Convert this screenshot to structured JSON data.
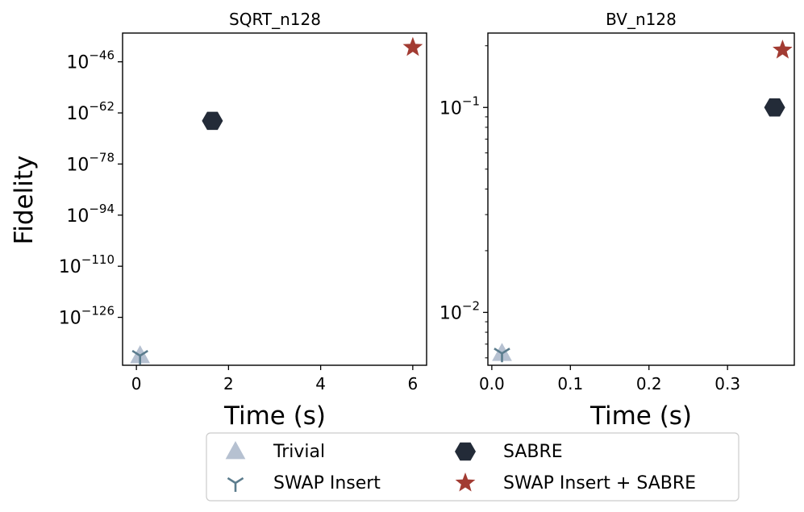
{
  "figure": {
    "ylabel": "Fidelity",
    "legend": {
      "placement": "bottom-center",
      "entries": [
        {
          "name": "Trivial",
          "marker": "triangle-up",
          "color": "#b6c1d1"
        },
        {
          "name": "SWAP Insert",
          "marker": "tri-down",
          "color": "#5b7c8d"
        },
        {
          "name": "SABRE",
          "marker": "hexagon",
          "color": "#232b38"
        },
        {
          "name": "SWAP Insert + SABRE",
          "marker": "star",
          "color": "#a23b32"
        }
      ]
    }
  },
  "chart_data": [
    {
      "type": "scatter",
      "title": "SQRT_n128",
      "xlabel": "Time (s)",
      "ylabel": "Fidelity",
      "xlim": [
        -0.3,
        6.3
      ],
      "ylim_log10": [
        -141,
        -37
      ],
      "yscale": "log",
      "grid": false,
      "xticks": [
        0,
        2,
        4,
        6
      ],
      "xtick_labels": [
        "0",
        "2",
        "4",
        "6"
      ],
      "yticks_log10": [
        -46,
        -62,
        -78,
        -94,
        -110,
        -126
      ],
      "ytick_exponents": [
        "−46",
        "−62",
        "−78",
        "−94",
        "−110",
        "−126"
      ],
      "series": [
        {
          "name": "Trivial",
          "x": [
            0.08
          ],
          "y_log10": [
            -138
          ]
        },
        {
          "name": "SWAP Insert",
          "x": [
            0.08
          ],
          "y_log10": [
            -138
          ]
        },
        {
          "name": "SABRE",
          "x": [
            1.65
          ],
          "y_log10": [
            -64.5
          ]
        },
        {
          "name": "SWAP Insert + SABRE",
          "x": [
            6.0
          ],
          "y_log10": [
            -41.5
          ]
        }
      ]
    },
    {
      "type": "scatter",
      "title": "BV_n128",
      "xlabel": "Time (s)",
      "ylabel": "",
      "xlim": [
        -0.005,
        0.385
      ],
      "ylim_log10": [
        -2.258,
        -0.637
      ],
      "yscale": "log",
      "grid": false,
      "xticks": [
        0.0,
        0.1,
        0.2,
        0.3
      ],
      "xtick_labels": [
        "0.0",
        "0.1",
        "0.2",
        "0.3"
      ],
      "yticks_log10": [
        -1,
        -2
      ],
      "ytick_exponents": [
        "−1",
        "−2"
      ],
      "series": [
        {
          "name": "Trivial",
          "x": [
            0.013
          ],
          "y_log10": [
            -2.2
          ]
        },
        {
          "name": "SWAP Insert",
          "x": [
            0.013
          ],
          "y_log10": [
            -2.2
          ]
        },
        {
          "name": "SABRE",
          "x": [
            0.36
          ],
          "y_log10": [
            -1.0
          ]
        },
        {
          "name": "SWAP Insert + SABRE",
          "x": [
            0.37
          ],
          "y_log10": [
            -0.72
          ]
        }
      ]
    }
  ]
}
